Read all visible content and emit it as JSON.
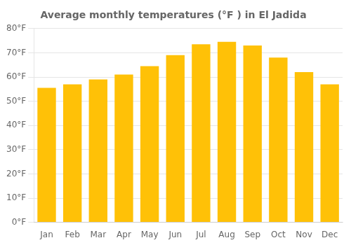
{
  "chart_data": {
    "type": "bar",
    "title": "Average monthly temperatures (°F ) in El Jadida",
    "categories": [
      "Jan",
      "Feb",
      "Mar",
      "Apr",
      "May",
      "Jun",
      "Jul",
      "Aug",
      "Sep",
      "Oct",
      "Nov",
      "Dec"
    ],
    "values": [
      55.5,
      57.0,
      59.0,
      61.0,
      64.5,
      69.0,
      73.5,
      74.5,
      73.0,
      68.0,
      62.0,
      57.0
    ],
    "color": "#FFC107",
    "ylim": [
      0,
      80
    ],
    "yticks": [
      {
        "value": 0,
        "label": "0°F"
      },
      {
        "value": 10,
        "label": "10°F"
      },
      {
        "value": 20,
        "label": "20°F"
      },
      {
        "value": 30,
        "label": "30°F"
      },
      {
        "value": 40,
        "label": "40°F"
      },
      {
        "value": 50,
        "label": "50°F"
      },
      {
        "value": 60,
        "label": "60°F"
      },
      {
        "value": 70,
        "label": "70°F"
      },
      {
        "value": 80,
        "label": "80°F"
      }
    ],
    "grid": true
  }
}
